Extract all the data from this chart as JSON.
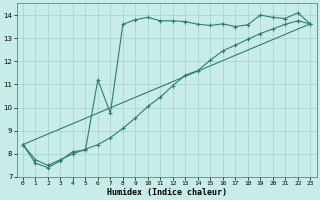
{
  "line1_x": [
    0,
    1,
    2,
    3,
    4,
    5,
    6,
    7,
    8,
    9,
    10,
    11,
    12,
    13,
    14,
    15,
    16,
    17,
    18,
    19,
    20,
    21,
    22,
    23
  ],
  "line1_y": [
    8.4,
    7.6,
    7.4,
    7.7,
    8.1,
    8.15,
    11.2,
    9.75,
    13.6,
    13.8,
    13.9,
    13.75,
    13.75,
    13.72,
    13.6,
    13.55,
    13.62,
    13.5,
    13.58,
    14.0,
    13.9,
    13.85,
    14.1,
    13.62
  ],
  "line2_x": [
    0,
    1,
    2,
    3,
    4,
    5,
    6,
    7,
    8,
    9,
    10,
    11,
    12,
    13,
    14,
    15,
    16,
    17,
    18,
    19,
    20,
    21,
    22,
    23
  ],
  "line2_y": [
    8.4,
    7.75,
    7.5,
    7.75,
    8.0,
    8.2,
    8.4,
    8.7,
    9.1,
    9.55,
    10.05,
    10.45,
    10.95,
    11.4,
    11.6,
    12.05,
    12.45,
    12.7,
    12.95,
    13.2,
    13.4,
    13.6,
    13.75,
    13.62
  ],
  "line3_x": [
    0,
    23
  ],
  "line3_y": [
    8.4,
    13.62
  ],
  "color": "#2d7d6e",
  "bg_color": "#c8ece8",
  "grid_color": "#a0d4cc",
  "xlabel": "Humidex (Indice chaleur)",
  "xlim": [
    -0.5,
    23.5
  ],
  "ylim": [
    7.0,
    14.5
  ],
  "yticks": [
    7,
    8,
    9,
    10,
    11,
    12,
    13,
    14
  ],
  "xticks": [
    0,
    1,
    2,
    3,
    4,
    5,
    6,
    7,
    8,
    9,
    10,
    11,
    12,
    13,
    14,
    15,
    16,
    17,
    18,
    19,
    20,
    21,
    22,
    23
  ]
}
